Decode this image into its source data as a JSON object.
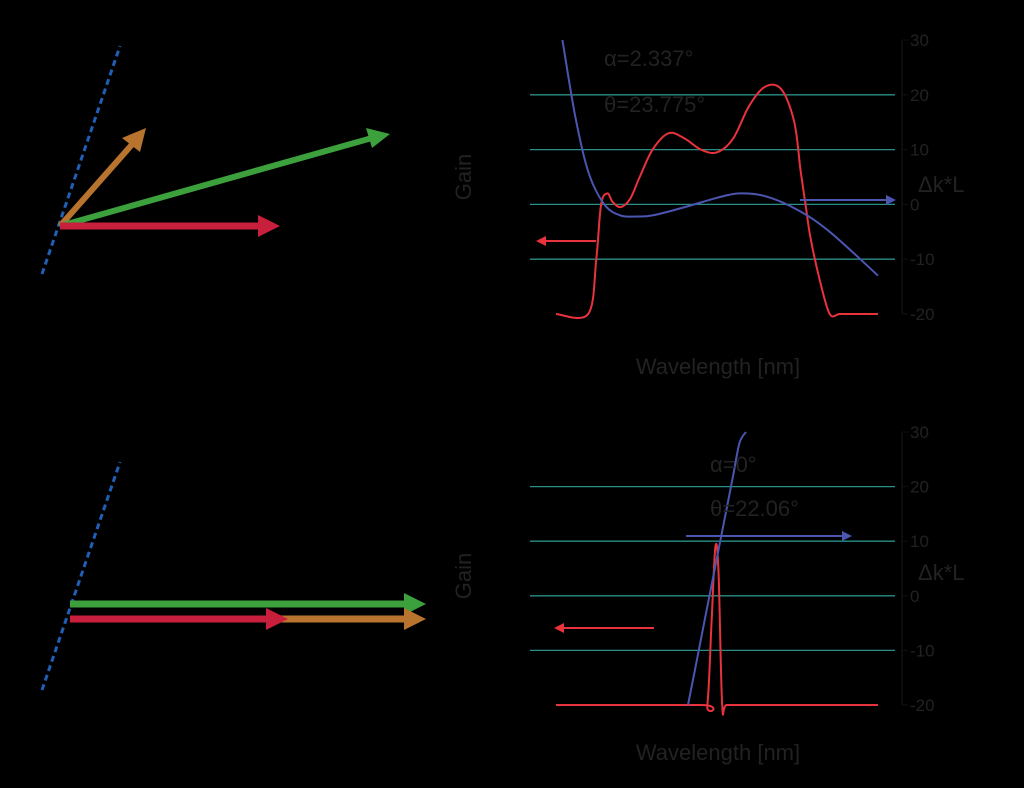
{
  "colors": {
    "background": "#000000",
    "text": "#222222",
    "gain_curve": "#e8323c",
    "dkl_curve": "#4a56b0",
    "gridline": "#2a8f86",
    "boundary_line": "#1f5fb4",
    "vector_red": "#c8203c",
    "vector_green": "#3ca03c",
    "vector_orange": "#b8732e"
  },
  "diagrams": [
    {
      "vectors": [
        {
          "color": "orange",
          "angle_deg": 50
        },
        {
          "color": "green",
          "angle_deg": 19
        },
        {
          "color": "red",
          "angle_deg": 0
        }
      ]
    },
    {
      "vectors": [
        {
          "color": "green",
          "angle_deg": 0
        },
        {
          "color": "red",
          "angle_deg": 0
        },
        {
          "color": "orange",
          "angle_deg": 0
        }
      ]
    }
  ],
  "chart_data": [
    {
      "type": "line",
      "annotations": [
        "α=2.337°",
        "θ=23.775°"
      ],
      "xlabel": "Wavelength [nm]",
      "ylabel_left": "Gain",
      "ylabel_right": "Δk*L",
      "x_range": [
        0,
        100
      ],
      "ylim_right": [
        -20,
        30
      ],
      "yticks_right": [
        30,
        20,
        10,
        0,
        -10,
        -20
      ],
      "grid": true,
      "series": [
        {
          "role": "gain",
          "axis": "left",
          "x": [
            0,
            10,
            12.5,
            14,
            16,
            17.5,
            20,
            23,
            26,
            30,
            35,
            40,
            45,
            50,
            55,
            60,
            65,
            70,
            74,
            76,
            77.5,
            79,
            82,
            85,
            88,
            91,
            94,
            100
          ],
          "y": [
            -20,
            -20,
            -10,
            0,
            2,
            0.5,
            -0.5,
            1,
            5,
            10,
            13,
            12,
            10,
            9.5,
            12,
            18,
            21.5,
            21,
            15,
            6,
            0,
            -6,
            -14,
            -20,
            -20,
            -20,
            -20,
            -20
          ]
        },
        {
          "role": "dkl",
          "axis": "right",
          "x": [
            2,
            6,
            10,
            15,
            20,
            25,
            30,
            40,
            50,
            57,
            65,
            75,
            85,
            100
          ],
          "y": [
            30,
            16,
            6,
            0,
            -2,
            -2.2,
            -2,
            -0.5,
            1.2,
            2,
            1.5,
            -1,
            -5,
            -13
          ]
        }
      ]
    },
    {
      "type": "line",
      "annotations": [
        "α=0°",
        "θ=22.06°"
      ],
      "xlabel": "Wavelength [nm]",
      "ylabel_left": "Gain",
      "ylabel_right": "Δk*L",
      "x_range": [
        0,
        100
      ],
      "ylim_right": [
        -20,
        30
      ],
      "yticks_right": [
        30,
        20,
        10,
        0,
        -10,
        -20
      ],
      "grid": true,
      "series": [
        {
          "role": "gain",
          "axis": "left",
          "x": [
            0,
            45,
            47,
            48.3,
            49.5,
            50.5,
            51.6,
            53,
            60,
            100
          ],
          "y": [
            -20,
            -20,
            -20,
            -5,
            9,
            4,
            -20,
            -20,
            -20,
            -20
          ]
        },
        {
          "role": "dkl",
          "axis": "right",
          "x": [
            41,
            43,
            45,
            47,
            49,
            51,
            53,
            55,
            57,
            59
          ],
          "y": [
            -20,
            -14,
            -8,
            -2,
            4,
            10,
            16,
            22,
            28,
            30
          ]
        }
      ]
    }
  ]
}
